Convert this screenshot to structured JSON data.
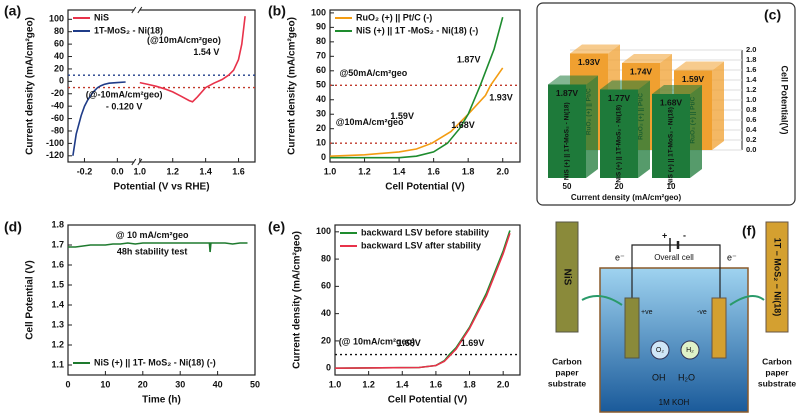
{
  "chart_data": [
    {
      "panel": "(a)",
      "type": "line",
      "xlabel": "Potential (V vs RHE)",
      "ylabel": "Current density (mA/cm²geo)",
      "xlim": [
        -0.3,
        1.7
      ],
      "xbreak": [
        0.1,
        1.0
      ],
      "xticks": [
        -0.2,
        {
          "value": 0,
          "label": "0.0"
        },
        {
          "value": 1,
          "label": "1.0"
        },
        1.2,
        1.4,
        1.6
      ],
      "ylim": [
        -130,
        115
      ],
      "yticks": [
        -120,
        -100,
        -80,
        -60,
        -40,
        -20,
        0,
        20,
        40,
        60,
        80,
        100
      ],
      "series": [
        {
          "name": "NiS",
          "color": "#e8324a",
          "x": [
            1.0,
            1.05,
            1.1,
            1.15,
            1.2,
            1.25,
            1.3,
            1.32,
            1.35,
            1.4,
            1.45,
            1.5,
            1.54,
            1.57,
            1.6,
            1.62,
            1.64
          ],
          "values": [
            -2,
            -5,
            -8,
            -12,
            -17,
            -24,
            -31,
            -33,
            -25,
            -10,
            -3,
            3,
            10,
            18,
            35,
            60,
            105
          ]
        },
        {
          "name": "1T-MoS₂ - Ni(18)",
          "color": "#1f3c88",
          "x": [
            -0.27,
            -0.25,
            -0.22,
            -0.2,
            -0.18,
            -0.15,
            -0.12,
            -0.1,
            -0.08,
            -0.05,
            0.0,
            0.05
          ],
          "values": [
            -120,
            -85,
            -55,
            -40,
            -30,
            -18,
            -10,
            -7,
            -5,
            -3,
            -2,
            -1
          ]
        }
      ],
      "hlines": [
        {
          "value": 10,
          "color": "#1f3c88"
        },
        {
          "value": -10,
          "color": "#c0392b"
        }
      ],
      "annotations": [
        {
          "text": "(@10mA/cm²geo)",
          "color": "#e8324a"
        },
        {
          "text": "1.54 V",
          "color": "#e8324a"
        },
        {
          "text": "(@-10mA/cm²geo)",
          "color": "#1f3c88"
        },
        {
          "text": "- 0.120 V",
          "color": "#1f3c88"
        }
      ],
      "legend": "upper left"
    },
    {
      "panel": "(b)",
      "type": "line",
      "xlabel": "Cell Potential (V)",
      "ylabel": "Current density (mA/cm²geo)",
      "xlim": [
        1.0,
        2.1
      ],
      "xticks": [
        {
          "value": 1,
          "label": "1.0"
        },
        1.2,
        1.4,
        1.6,
        1.8,
        {
          "value": 2,
          "label": "2.0"
        }
      ],
      "ylim": [
        -3,
        102
      ],
      "yticks": [
        0,
        10,
        20,
        30,
        40,
        50,
        60,
        70,
        80,
        90,
        100
      ],
      "series": [
        {
          "name": "RuO₂ (+) || Pt/C (-)",
          "color": "#f39c12",
          "x": [
            1.0,
            1.2,
            1.4,
            1.5,
            1.59,
            1.7,
            1.8,
            1.9,
            1.93,
            2.0
          ],
          "values": [
            1,
            2,
            4,
            6,
            10,
            18,
            30,
            43,
            50,
            62
          ]
        },
        {
          "name": "NiS (+) || 1T -MoS₂ - Ni(18) (-)",
          "color": "#1e8c2e",
          "x": [
            1.0,
            1.4,
            1.5,
            1.6,
            1.68,
            1.75,
            1.8,
            1.87,
            1.95,
            2.0
          ],
          "values": [
            0,
            0,
            1,
            4,
            10,
            20,
            30,
            50,
            75,
            97
          ]
        }
      ],
      "hlines": [
        {
          "value": 50,
          "color": "#c0392b"
        },
        {
          "value": 10,
          "color": "#c0392b"
        }
      ],
      "annotations": [
        {
          "text": "@50mA/cm²geo",
          "color": "#c0392b"
        },
        {
          "text": "@10mA/cm²geo",
          "color": "#7a4a00"
        },
        {
          "text": "1.87V",
          "color": "#1e8c2e"
        },
        {
          "text": "1.93V",
          "color": "#f39c12"
        },
        {
          "text": "1.59V",
          "color": "#f39c12"
        },
        {
          "text": "1.68V",
          "color": "#1e8c2e"
        }
      ],
      "legend": "upper left"
    },
    {
      "panel": "(c)",
      "type": "bar3d",
      "xlabel": "Current density (mA/cm²geo)",
      "zlabel": "Cell Potential(V)",
      "categories": [
        "10",
        "20",
        "50"
      ],
      "zlim": [
        0,
        2.0
      ],
      "zticks": [
        {
          "value": 0,
          "label": "0.0"
        },
        0.2,
        0.4,
        0.6,
        0.8,
        {
          "value": 1,
          "label": "1.0"
        },
        1.2,
        1.4,
        1.6,
        1.8,
        {
          "value": 2,
          "label": "2.0"
        }
      ],
      "series": [
        {
          "name": "NiS (+) || 1T-MoS₂ - Ni(18)",
          "color": "#1e7a3a",
          "values": [
            1.68,
            1.77,
            1.87
          ],
          "value_labels": [
            "1.68V",
            "1.77V",
            "1.87V"
          ]
        },
        {
          "name": "RuO₂ (+) || Pt/C",
          "color": "#f0a030",
          "values": [
            1.59,
            1.74,
            1.93
          ],
          "value_labels": [
            "1.59V",
            "1.74V",
            "1.93V"
          ]
        }
      ]
    },
    {
      "panel": "(d)",
      "type": "line",
      "xlabel": "Time (h)",
      "ylabel": "Cell Potential (V)",
      "xlim": [
        0,
        50
      ],
      "xticks": [
        0,
        10,
        20,
        30,
        40,
        50
      ],
      "ylim": [
        1.05,
        1.8
      ],
      "yticks": [
        1.1,
        1.2,
        1.3,
        1.4,
        1.5,
        1.6,
        1.7,
        1.8
      ],
      "series": [
        {
          "name": "NiS (+) || 1T- MoS₂ - Ni(18) (-)",
          "color": "#1e7a2e",
          "x": [
            0,
            2,
            4,
            6,
            8,
            10,
            12,
            14,
            16,
            18,
            20,
            22,
            24,
            26,
            28,
            30,
            32,
            34,
            36,
            37.8,
            38,
            38.2,
            40,
            42,
            44,
            46,
            48
          ],
          "values": [
            1.69,
            1.69,
            1.695,
            1.7,
            1.7,
            1.7,
            1.705,
            1.705,
            1.71,
            1.705,
            1.71,
            1.71,
            1.71,
            1.71,
            1.71,
            1.71,
            1.71,
            1.71,
            1.71,
            1.71,
            1.665,
            1.71,
            1.71,
            1.71,
            1.705,
            1.71,
            1.71
          ]
        }
      ],
      "annotations": [
        {
          "text": "@ 10 mA/cm²geo",
          "color": "#1f3c88"
        },
        {
          "text": "48h stability test",
          "color": "#7a5a10"
        }
      ],
      "legend": "lower left"
    },
    {
      "panel": "(e)",
      "type": "line",
      "xlabel": "Cell Potential (V)",
      "ylabel": "Current density (mA/cm²geo)",
      "xlim": [
        1.0,
        2.1
      ],
      "xticks": [
        {
          "value": 1,
          "label": "1.0"
        },
        1.2,
        1.4,
        1.6,
        1.8,
        {
          "value": 2,
          "label": "2.0"
        }
      ],
      "ylim": [
        -5,
        105
      ],
      "yticks": [
        0,
        20,
        40,
        60,
        80,
        100
      ],
      "series": [
        {
          "name": "backward LSV before stability",
          "color": "#1e8c2e",
          "x": [
            1.0,
            1.5,
            1.6,
            1.65,
            1.68,
            1.72,
            1.8,
            1.9,
            2.0,
            2.04
          ],
          "values": [
            0,
            0.5,
            2,
            5.5,
            10,
            15,
            30,
            55,
            86,
            101
          ]
        },
        {
          "name": "backward LSV after  stability",
          "color": "#e8324a",
          "x": [
            1.0,
            1.5,
            1.6,
            1.65,
            1.69,
            1.72,
            1.8,
            1.9,
            2.0,
            2.04
          ],
          "values": [
            0,
            0.5,
            2,
            5,
            10,
            14,
            29,
            53,
            84,
            99
          ]
        }
      ],
      "hlines": [
        {
          "value": 10,
          "color": "#111111"
        }
      ],
      "annotations": [
        {
          "text": "(@ 10mA/cm²geo)",
          "color": "#111111"
        },
        {
          "text": "1.68V",
          "color": "#1e8c2e"
        },
        {
          "text": "1.69V",
          "color": "#e8324a"
        }
      ],
      "legend": "upper left"
    }
  ],
  "diagram": {
    "panel": "(f)",
    "title": "Overall cell",
    "electrons": [
      "e⁻",
      "e⁻"
    ],
    "battery": [
      "+",
      "-"
    ],
    "anode": "+ve",
    "cathode": "-ve",
    "left_electrode": "NiS",
    "right_electrode": "1T – MoS₂ – Ni(18)",
    "substrate": [
      "Carbon",
      "paper",
      "substrate"
    ],
    "gases": [
      "O₂",
      "H₂"
    ],
    "ions": [
      "OH",
      "H₂O"
    ],
    "electrolyte": "1M KOH"
  }
}
